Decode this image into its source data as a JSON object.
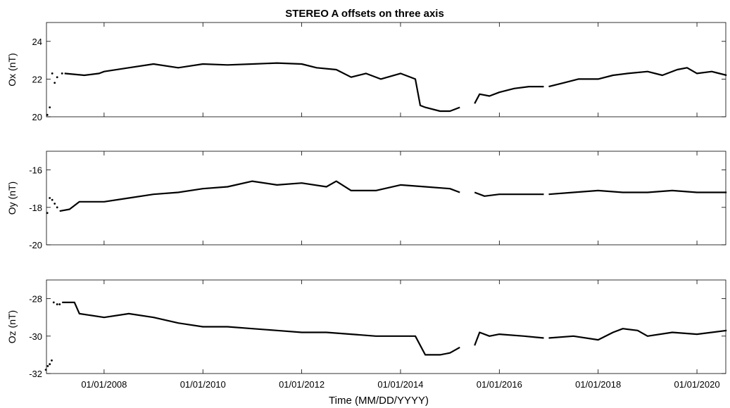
{
  "chart_data": {
    "type": "line",
    "title": "STEREO A offsets on three axis",
    "xlabel": "Time (MM/DD/YYYY)",
    "x_ticks": [
      "01/01/2008",
      "01/01/2010",
      "01/01/2012",
      "01/01/2014",
      "01/01/2016",
      "01/01/2018",
      "01/01/2020"
    ],
    "xlim": [
      "11/2006",
      "08/2020"
    ],
    "grid": false,
    "panels": [
      {
        "ylabel": "Ox (nT)",
        "ylim": [
          20,
          25
        ],
        "yticks": [
          "20",
          "22",
          "24"
        ],
        "series": [
          {
            "x": [
              2006.85,
              2006.9,
              2006.95,
              2007.0,
              2007.05,
              2007.15
            ],
            "y": [
              20.1,
              20.5,
              22.3,
              21.8,
              22.1,
              22.3
            ],
            "style": "dots"
          },
          {
            "x": [
              2007.2,
              2007.6,
              2007.9,
              2008.0,
              2008.5,
              2009.0,
              2009.5,
              2010.0,
              2010.5,
              2011.0,
              2011.5,
              2012.0,
              2012.3,
              2012.7,
              2013.0,
              2013.3,
              2013.6,
              2014.0,
              2014.3,
              2014.4,
              2014.5,
              2014.8,
              2015.0,
              2015.2
            ],
            "y": [
              22.3,
              22.2,
              22.3,
              22.4,
              22.6,
              22.8,
              22.6,
              22.8,
              22.75,
              22.8,
              22.85,
              22.8,
              22.6,
              22.5,
              22.1,
              22.3,
              22.0,
              22.3,
              22.0,
              20.6,
              20.5,
              20.3,
              20.3,
              20.5
            ]
          },
          {
            "x": [
              2015.5,
              2015.6,
              2015.8,
              2016.0,
              2016.3,
              2016.6,
              2016.9
            ],
            "y": [
              20.7,
              21.2,
              21.1,
              21.3,
              21.5,
              21.6,
              21.6
            ]
          },
          {
            "x": [
              2017.0,
              2017.3,
              2017.6,
              2018.0,
              2018.3,
              2018.6,
              2019.0,
              2019.3,
              2019.6,
              2019.8,
              2020.0,
              2020.3,
              2020.6
            ],
            "y": [
              21.6,
              21.8,
              22.0,
              22.0,
              22.2,
              22.3,
              22.4,
              22.2,
              22.5,
              22.6,
              22.3,
              22.4,
              22.2
            ]
          }
        ]
      },
      {
        "ylabel": "Oy (nT)",
        "ylim": [
          -20,
          -15
        ],
        "yticks": [
          "-20",
          "-18",
          "-16"
        ],
        "series": [
          {
            "x": [
              2006.85,
              2006.9,
              2006.95,
              2007.0,
              2007.05
            ],
            "y": [
              -18.3,
              -17.5,
              -17.6,
              -17.8,
              -18.0
            ],
            "style": "dots"
          },
          {
            "x": [
              2007.1,
              2007.3,
              2007.5,
              2008.0,
              2008.5,
              2009.0,
              2009.5,
              2010.0,
              2010.5,
              2011.0,
              2011.5,
              2012.0,
              2012.5,
              2012.7,
              2013.0,
              2013.5,
              2014.0,
              2014.5,
              2015.0,
              2015.2
            ],
            "y": [
              -18.2,
              -18.1,
              -17.7,
              -17.7,
              -17.5,
              -17.3,
              -17.2,
              -17.0,
              -16.9,
              -16.6,
              -16.8,
              -16.7,
              -16.9,
              -16.6,
              -17.1,
              -17.1,
              -16.8,
              -16.9,
              -17.0,
              -17.2
            ]
          },
          {
            "x": [
              2015.5,
              2015.7,
              2016.0,
              2016.5,
              2016.9
            ],
            "y": [
              -17.2,
              -17.4,
              -17.3,
              -17.3,
              -17.3
            ]
          },
          {
            "x": [
              2017.0,
              2017.5,
              2018.0,
              2018.5,
              2019.0,
              2019.5,
              2020.0,
              2020.6
            ],
            "y": [
              -17.3,
              -17.2,
              -17.1,
              -17.2,
              -17.2,
              -17.1,
              -17.2,
              -17.2
            ]
          }
        ]
      },
      {
        "ylabel": "Oz (nT)",
        "ylim": [
          -32,
          -27
        ],
        "yticks": [
          "-32",
          "-30",
          "-28"
        ],
        "series": [
          {
            "x": [
              2006.82,
              2006.86,
              2006.9,
              2006.94,
              2006.98,
              2007.05,
              2007.1
            ],
            "y": [
              -31.8,
              -31.6,
              -31.5,
              -31.3,
              -28.2,
              -28.3,
              -28.3
            ],
            "style": "dots"
          },
          {
            "x": [
              2007.15,
              2007.4,
              2007.5,
              2008.0,
              2008.5,
              2009.0,
              2009.5,
              2010.0,
              2010.5,
              2011.0,
              2011.5,
              2012.0,
              2012.5,
              2013.0,
              2013.5,
              2014.0,
              2014.3,
              2014.5,
              2014.8,
              2015.0,
              2015.2
            ],
            "y": [
              -28.2,
              -28.2,
              -28.8,
              -29.0,
              -28.8,
              -29.0,
              -29.3,
              -29.5,
              -29.5,
              -29.6,
              -29.7,
              -29.8,
              -29.8,
              -29.9,
              -30.0,
              -30.0,
              -30.0,
              -31.0,
              -31.0,
              -30.9,
              -30.6
            ]
          },
          {
            "x": [
              2015.5,
              2015.6,
              2015.8,
              2016.0,
              2016.5,
              2016.9
            ],
            "y": [
              -30.5,
              -29.8,
              -30.0,
              -29.9,
              -30.0,
              -30.1
            ]
          },
          {
            "x": [
              2017.0,
              2017.5,
              2018.0,
              2018.3,
              2018.5,
              2018.8,
              2019.0,
              2019.5,
              2020.0,
              2020.6
            ],
            "y": [
              -30.1,
              -30.0,
              -30.2,
              -29.8,
              -29.6,
              -29.7,
              -30.0,
              -29.8,
              -29.9,
              -29.7
            ]
          }
        ]
      }
    ]
  }
}
